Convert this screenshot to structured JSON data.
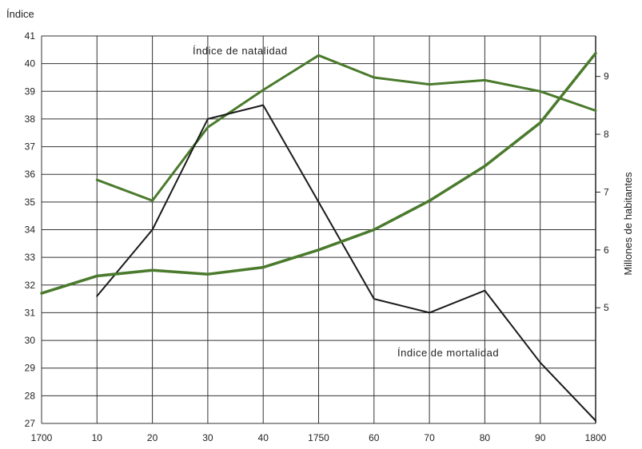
{
  "chart_data": {
    "type": "line",
    "x_tick_labels": [
      "1700",
      "10",
      "20",
      "30",
      "40",
      "1750",
      "60",
      "70",
      "80",
      "90",
      "1800"
    ],
    "x": [
      1700,
      1710,
      1720,
      1730,
      1740,
      1750,
      1760,
      1770,
      1780,
      1790,
      1800
    ],
    "left_axis": {
      "label": "Índice",
      "range": [
        27,
        41
      ],
      "ticks": [
        27,
        28,
        29,
        30,
        31,
        32,
        33,
        34,
        35,
        36,
        37,
        38,
        39,
        40,
        41
      ]
    },
    "right_axis": {
      "label": "Millones de habitantes",
      "range": [
        3.0,
        9.7
      ],
      "ticks": [
        5,
        6,
        7,
        8,
        9
      ]
    },
    "grid": true,
    "series": [
      {
        "name": "Índice de natalidad",
        "axis": "left",
        "color": "#4a7a2c",
        "points": [
          [
            1710,
            35.8
          ],
          [
            1720,
            35.05
          ],
          [
            1730,
            37.7
          ],
          [
            1740,
            39.05
          ],
          [
            1750,
            40.3
          ],
          [
            1760,
            39.5
          ],
          [
            1770,
            39.25
          ],
          [
            1780,
            39.4
          ],
          [
            1790,
            39.0
          ],
          [
            1800,
            38.3
          ]
        ]
      },
      {
        "name": "Índice de mortalidad",
        "axis": "left",
        "color": "#1a1a1a",
        "points": [
          [
            1710,
            31.6
          ],
          [
            1720,
            34.0
          ],
          [
            1730,
            38.0
          ],
          [
            1740,
            38.5
          ],
          [
            1750,
            35.0
          ],
          [
            1760,
            31.5
          ],
          [
            1770,
            31.0
          ],
          [
            1780,
            31.8
          ],
          [
            1790,
            29.2
          ],
          [
            1800,
            27.1
          ]
        ]
      },
      {
        "name": "",
        "axis": "right",
        "color": "#4a7a2c",
        "points": [
          [
            1700,
            5.25
          ],
          [
            1710,
            5.55
          ],
          [
            1720,
            5.65
          ],
          [
            1730,
            5.58
          ],
          [
            1740,
            5.7
          ],
          [
            1750,
            6.0
          ],
          [
            1760,
            6.35
          ],
          [
            1770,
            6.85
          ],
          [
            1780,
            7.45
          ],
          [
            1790,
            8.2
          ],
          [
            1800,
            9.4
          ]
        ]
      }
    ]
  }
}
